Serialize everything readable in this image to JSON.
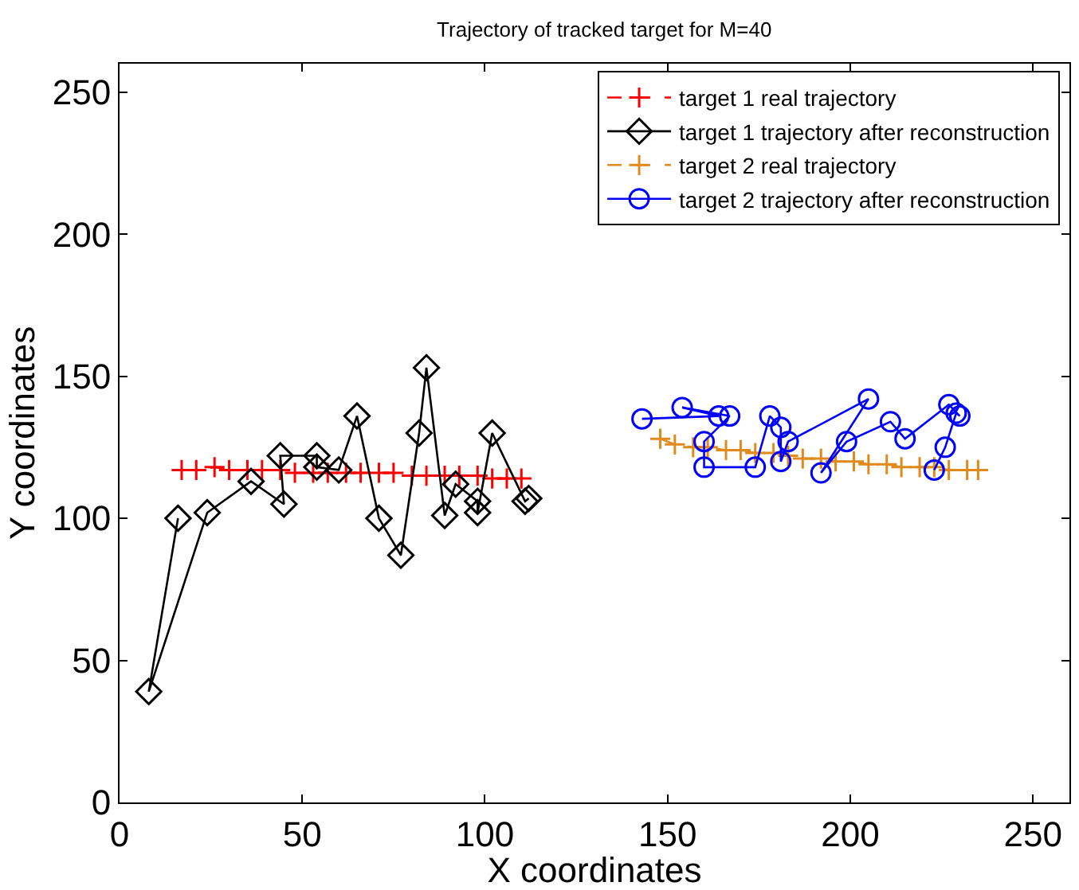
{
  "chart_data": {
    "type": "line",
    "title": "Trajectory of tracked target for M=40",
    "xlabel": "X coordinates",
    "ylabel": "Y coordinates",
    "xlim": [
      0,
      260
    ],
    "ylim": [
      0,
      260
    ],
    "xticks": [
      0,
      50,
      100,
      150,
      200,
      250
    ],
    "yticks": [
      0,
      50,
      100,
      150,
      200,
      250
    ],
    "legend": "top right",
    "series": [
      {
        "name": "target 1 real trajectory",
        "color": "#ff0000",
        "marker": "cross",
        "line_style": "dashed",
        "x": [
          17,
          21,
          26,
          30,
          35,
          39,
          44,
          48,
          53,
          57,
          62,
          66,
          71,
          75,
          80,
          84,
          89,
          93,
          98,
          102,
          106,
          110
        ],
        "values": [
          117,
          117,
          118,
          117,
          117,
          117,
          117,
          116,
          116,
          116,
          116,
          116,
          116,
          116,
          115,
          115,
          115,
          115,
          115,
          114,
          114,
          114
        ]
      },
      {
        "name": "target 1 trajectory after reconstruction",
        "color": "#000000",
        "marker": "diamond",
        "line_style": "solid",
        "x": [
          16,
          8,
          24,
          36,
          45,
          44,
          54,
          54,
          60,
          65,
          71,
          77,
          82,
          84,
          89,
          92,
          98,
          98,
          102,
          111,
          112
        ],
        "values": [
          100,
          39,
          102,
          113,
          105,
          122,
          122,
          118,
          117,
          136,
          100,
          87,
          130,
          153,
          101,
          112,
          106,
          102,
          130,
          106,
          107
        ]
      },
      {
        "name": "target 2 real trajectory",
        "color": "#e08a1e",
        "marker": "cross",
        "line_style": "dashed",
        "x": [
          148,
          152,
          157,
          161,
          166,
          170,
          174,
          179,
          183,
          187,
          192,
          196,
          201,
          205,
          210,
          214,
          219,
          223,
          227,
          232,
          235
        ],
        "values": [
          128,
          126,
          125,
          125,
          124,
          124,
          123,
          123,
          122,
          121,
          121,
          120,
          120,
          119,
          119,
          118,
          118,
          118,
          117,
          117,
          117
        ]
      },
      {
        "name": "target 2 trajectory after reconstruction",
        "color": "#0000ff",
        "marker": "circle",
        "line_style": "solid",
        "x": [
          143,
          164,
          154,
          167,
          160,
          160,
          174,
          178,
          181,
          181,
          183,
          205,
          192,
          199,
          211,
          215,
          227,
          230,
          229,
          226,
          223
        ],
        "values": [
          135,
          136,
          139,
          136,
          127,
          118,
          118,
          136,
          132,
          120,
          127,
          142,
          116,
          127,
          134,
          128,
          140,
          136,
          137,
          125,
          117
        ]
      }
    ]
  }
}
